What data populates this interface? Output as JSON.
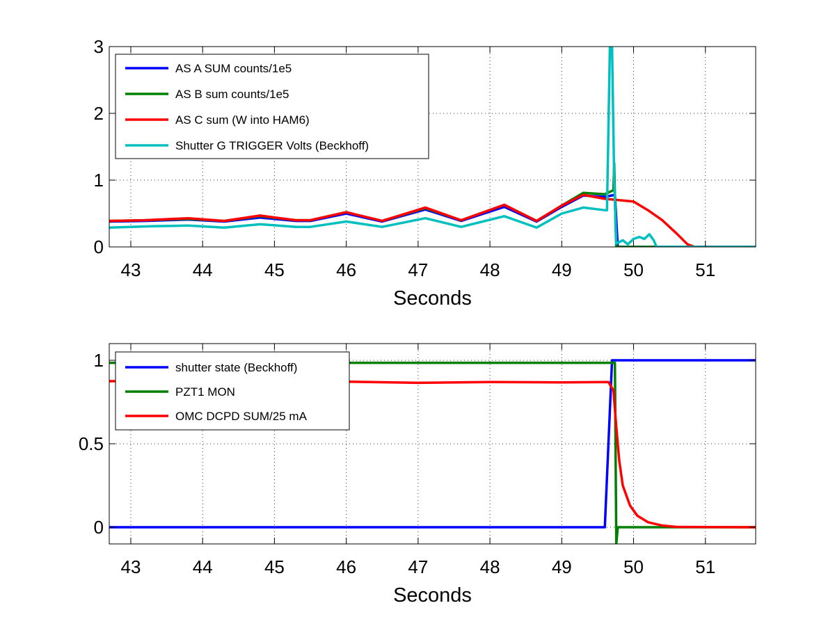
{
  "chart_data": [
    {
      "type": "line",
      "xlabel": "Seconds",
      "ylabel": "",
      "xlim": [
        42.7,
        51.7
      ],
      "ylim": [
        0,
        3
      ],
      "xticks": [
        43,
        44,
        45,
        46,
        47,
        48,
        49,
        50,
        51
      ],
      "yticks": [
        0,
        1,
        2,
        3
      ],
      "grid": true,
      "legend_position": "top-left",
      "series": [
        {
          "name": "AS A SUM counts/1e5",
          "color": "#0000ff",
          "points": [
            [
              42.7,
              0.38
            ],
            [
              43.2,
              0.39
            ],
            [
              43.8,
              0.41
            ],
            [
              44.3,
              0.38
            ],
            [
              44.8,
              0.44
            ],
            [
              45.3,
              0.39
            ],
            [
              45.5,
              0.39
            ],
            [
              46.0,
              0.5
            ],
            [
              46.5,
              0.38
            ],
            [
              47.1,
              0.56
            ],
            [
              47.6,
              0.39
            ],
            [
              48.2,
              0.6
            ],
            [
              48.65,
              0.38
            ],
            [
              49.0,
              0.6
            ],
            [
              49.3,
              0.77
            ],
            [
              49.6,
              0.75
            ],
            [
              49.74,
              0.78
            ],
            [
              49.78,
              0.0
            ],
            [
              51.7,
              0.0
            ]
          ]
        },
        {
          "name": "AS B sum counts/1e5",
          "color": "#008000",
          "points": [
            [
              42.7,
              0.39
            ],
            [
              43.2,
              0.4
            ],
            [
              43.8,
              0.42
            ],
            [
              44.3,
              0.39
            ],
            [
              44.8,
              0.46
            ],
            [
              45.3,
              0.4
            ],
            [
              45.5,
              0.4
            ],
            [
              46.0,
              0.52
            ],
            [
              46.5,
              0.39
            ],
            [
              47.1,
              0.58
            ],
            [
              47.6,
              0.4
            ],
            [
              48.2,
              0.63
            ],
            [
              48.65,
              0.39
            ],
            [
              49.0,
              0.62
            ],
            [
              49.3,
              0.81
            ],
            [
              49.6,
              0.79
            ],
            [
              49.72,
              0.85
            ],
            [
              49.73,
              1.25
            ],
            [
              49.75,
              0.3
            ],
            [
              49.76,
              0.0
            ],
            [
              51.7,
              0.0
            ]
          ]
        },
        {
          "name": "AS C sum (W into HAM6)",
          "color": "#ff0000",
          "points": [
            [
              42.7,
              0.39
            ],
            [
              43.2,
              0.4
            ],
            [
              43.8,
              0.43
            ],
            [
              44.3,
              0.39
            ],
            [
              44.8,
              0.47
            ],
            [
              45.3,
              0.4
            ],
            [
              45.5,
              0.4
            ],
            [
              46.0,
              0.52
            ],
            [
              46.5,
              0.39
            ],
            [
              47.1,
              0.59
            ],
            [
              47.6,
              0.4
            ],
            [
              48.2,
              0.63
            ],
            [
              48.65,
              0.39
            ],
            [
              49.0,
              0.62
            ],
            [
              49.3,
              0.78
            ],
            [
              49.6,
              0.72
            ],
            [
              49.8,
              0.7
            ],
            [
              50.0,
              0.68
            ],
            [
              50.2,
              0.55
            ],
            [
              50.4,
              0.4
            ],
            [
              50.6,
              0.2
            ],
            [
              50.75,
              0.04
            ],
            [
              50.85,
              0.0
            ],
            [
              51.7,
              0.0
            ]
          ]
        },
        {
          "name": "Shutter G TRIGGER Volts (Beckhoff)",
          "color": "#00bfbf",
          "points": [
            [
              42.7,
              0.29
            ],
            [
              43.3,
              0.31
            ],
            [
              43.8,
              0.32
            ],
            [
              44.3,
              0.29
            ],
            [
              44.8,
              0.34
            ],
            [
              45.3,
              0.3
            ],
            [
              45.5,
              0.3
            ],
            [
              46.0,
              0.38
            ],
            [
              46.5,
              0.3
            ],
            [
              47.1,
              0.43
            ],
            [
              47.6,
              0.3
            ],
            [
              48.2,
              0.46
            ],
            [
              48.65,
              0.29
            ],
            [
              49.0,
              0.5
            ],
            [
              49.3,
              0.59
            ],
            [
              49.6,
              0.55
            ],
            [
              49.63,
              0.55
            ],
            [
              49.67,
              3.0
            ],
            [
              49.7,
              3.0
            ],
            [
              49.73,
              1.0
            ],
            [
              49.76,
              0.05
            ],
            [
              49.85,
              0.1
            ],
            [
              49.92,
              0.04
            ],
            [
              50.0,
              0.12
            ],
            [
              50.08,
              0.15
            ],
            [
              50.15,
              0.12
            ],
            [
              50.22,
              0.19
            ],
            [
              50.28,
              0.1
            ],
            [
              50.32,
              0.0
            ],
            [
              51.7,
              0.0
            ]
          ]
        }
      ]
    },
    {
      "type": "line",
      "xlabel": "Seconds",
      "ylabel": "",
      "xlim": [
        42.7,
        51.7
      ],
      "ylim": [
        -0.1,
        1.1
      ],
      "xticks": [
        43,
        44,
        45,
        46,
        47,
        48,
        49,
        50,
        51
      ],
      "yticks": [
        0,
        0.5,
        1
      ],
      "grid": true,
      "legend_position": "top-left",
      "series": [
        {
          "name": "shutter state (Beckhoff)",
          "color": "#0000ff",
          "points": [
            [
              42.7,
              0.0
            ],
            [
              49.6,
              0.0
            ],
            [
              49.7,
              1.0
            ],
            [
              51.7,
              1.0
            ]
          ]
        },
        {
          "name": "PZT1 MON",
          "color": "#008000",
          "points": [
            [
              42.7,
              0.985
            ],
            [
              49.74,
              0.985
            ],
            [
              49.76,
              -0.1
            ],
            [
              49.78,
              0.0
            ],
            [
              51.7,
              0.0
            ]
          ]
        },
        {
          "name": "OMC DCPD SUM/25 mA",
          "color": "#ff0000",
          "points": [
            [
              42.7,
              0.875
            ],
            [
              46.0,
              0.872
            ],
            [
              47.0,
              0.865
            ],
            [
              48.0,
              0.87
            ],
            [
              49.0,
              0.868
            ],
            [
              49.65,
              0.87
            ],
            [
              49.72,
              0.82
            ],
            [
              49.76,
              0.6
            ],
            [
              49.8,
              0.4
            ],
            [
              49.85,
              0.25
            ],
            [
              49.95,
              0.13
            ],
            [
              50.05,
              0.07
            ],
            [
              50.2,
              0.03
            ],
            [
              50.4,
              0.01
            ],
            [
              50.6,
              0.002
            ],
            [
              51.7,
              0.0
            ]
          ]
        }
      ]
    }
  ]
}
